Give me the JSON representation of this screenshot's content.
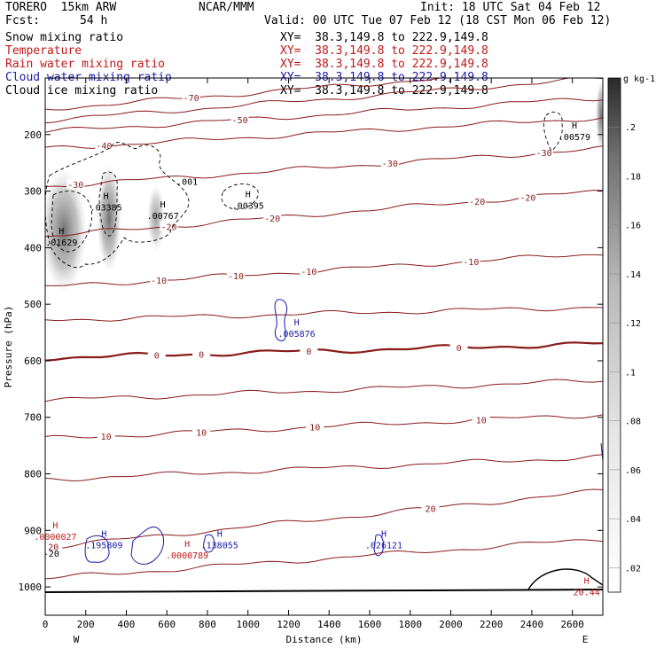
{
  "header": {
    "model": "TORERO  15km ARW",
    "org": "NCAR/MMM",
    "init": "Init: 18 UTC Sat 04 Feb 12",
    "fcst_label": "Fcst:",
    "fcst_value": "54 h",
    "valid": "Valid: 00 UTC Tue 07 Feb 12 (18 CST Mon 06 Feb 12)"
  },
  "fields": [
    {
      "name": "Snow mixing ratio",
      "xy": "XY=  38.3,149.8 to 222.9,149.8",
      "color": "#000000"
    },
    {
      "name": "Temperature",
      "xy": "XY=  38.3,149.8 to 222.9,149.8",
      "color": "#c01818"
    },
    {
      "name": "Rain water mixing ratio",
      "xy": "XY=  38.3,149.8 to 222.9,149.8",
      "color": "#c01818"
    },
    {
      "name": "Cloud water mixing ratio",
      "xy": "XY=  38.3,149.8 to 222.9,149.8",
      "color": "#1a1aa8"
    },
    {
      "name": "Cloud ice mixing ratio",
      "xy": "XY=  38.3,149.8 to 222.9,149.8",
      "color": "#000000"
    }
  ],
  "colors": {
    "temperature": "#8a1a1a",
    "rain": "#c01818",
    "cloud_water": "#1a1aa8",
    "ground": "#000000"
  },
  "chart_data": {
    "type": "cross-section",
    "xlabel": "Distance (km)",
    "ylabel": "Pressure (hPa)",
    "xlim": [
      0,
      2750
    ],
    "ylim": [
      1050,
      100
    ],
    "x_ticks": [
      0,
      200,
      400,
      600,
      800,
      1000,
      1200,
      1400,
      1600,
      1800,
      2000,
      2200,
      2400,
      2600
    ],
    "y_ticks": [
      200,
      300,
      400,
      500,
      600,
      700,
      800,
      900,
      1000
    ],
    "left_end_label": "W",
    "right_end_label": "E",
    "colorbar": {
      "unit": "g kg-1",
      "ticks": [
        ".02",
        ".04",
        ".06",
        ".08",
        ".1",
        ".12",
        ".14",
        ".16",
        ".18",
        ".2"
      ],
      "min": 0.01,
      "max": 0.22
    },
    "temperature_contours": [
      {
        "value": -70,
        "p_left": 155,
        "p_right": 78,
        "labels": [
          {
            "x": 720,
            "text": "-70"
          }
        ]
      },
      {
        "value": -60,
        "p_left": 175,
        "p_right": 100,
        "labels": []
      },
      {
        "value": -50,
        "p_left": 195,
        "p_right": 135,
        "labels": [
          {
            "x": 960,
            "text": "-50"
          }
        ]
      },
      {
        "value": -40,
        "p_left": 225,
        "p_right": 170,
        "labels": [
          {
            "x": 290,
            "text": "-40"
          }
        ]
      },
      {
        "value": -30,
        "p_left": 292,
        "p_right": 225,
        "labels": [
          {
            "x": 150,
            "text": "-30"
          },
          {
            "x": 1700,
            "text": "-30"
          },
          {
            "x": 2460,
            "text": "-30"
          }
        ]
      },
      {
        "value": -20,
        "p_left": 380,
        "p_right": 300,
        "labels": [
          {
            "x": 610,
            "text": "-20"
          },
          {
            "x": 1120,
            "text": "-20"
          },
          {
            "x": 2130,
            "text": "-20"
          },
          {
            "x": 2380,
            "text": "-20"
          }
        ]
      },
      {
        "value": -10,
        "p_left": 470,
        "p_right": 410,
        "labels": [
          {
            "x": 560,
            "text": "-10"
          },
          {
            "x": 940,
            "text": "-10"
          },
          {
            "x": 1300,
            "text": "-10"
          },
          {
            "x": 2100,
            "text": "-10"
          }
        ]
      },
      {
        "value": -5,
        "p_left": 528,
        "p_right": 505,
        "labels": []
      },
      {
        "value": 0,
        "p_left": 595,
        "p_right": 570,
        "labels": [
          {
            "x": 550,
            "text": "0"
          },
          {
            "x": 770,
            "text": "0"
          },
          {
            "x": 1300,
            "text": "0"
          },
          {
            "x": 2040,
            "text": "0"
          }
        ]
      },
      {
        "value": 5,
        "p_left": 670,
        "p_right": 635,
        "labels": []
      },
      {
        "value": 10,
        "p_left": 738,
        "p_right": 695,
        "labels": [
          {
            "x": 300,
            "text": "10"
          },
          {
            "x": 770,
            "text": "10"
          },
          {
            "x": 1330,
            "text": "10"
          },
          {
            "x": 2150,
            "text": "10"
          }
        ]
      },
      {
        "value": 15,
        "p_left": 810,
        "p_right": 770,
        "labels": []
      },
      {
        "value": 20,
        "p_left": 930,
        "p_right": 830,
        "labels": [
          {
            "x": 40,
            "text": "20"
          },
          {
            "x": 1900,
            "text": "20"
          }
        ]
      },
      {
        "value": 25,
        "p_left": 985,
        "p_right": 915,
        "labels": []
      }
    ],
    "maxima": [
      {
        "x": 80,
        "p": 387,
        "value": ".01629",
        "kind": "snow"
      },
      {
        "x": 300,
        "p": 325,
        "value": ".03385",
        "kind": "snow"
      },
      {
        "x": 580,
        "p": 340,
        "value": ".00767",
        "kind": "ice"
      },
      {
        "x": 1000,
        "p": 322,
        "value": ".00395",
        "kind": "ice"
      },
      {
        "x": 2610,
        "p": 200,
        "value": ".00579",
        "kind": "ice"
      },
      {
        "x": 1240,
        "p": 548,
        "value": ".005876",
        "kind": "cloud_water"
      },
      {
        "x": 290,
        "p": 922,
        "value": ".195809",
        "kind": "cloud_water"
      },
      {
        "x": 860,
        "p": 922,
        "value": ".138055",
        "kind": "cloud_water"
      },
      {
        "x": 1670,
        "p": 922,
        "value": ".026121",
        "kind": "cloud_water"
      },
      {
        "x": 50,
        "p": 907,
        "value": ".0000027",
        "kind": "rain"
      },
      {
        "x": 700,
        "p": 940,
        "value": ".0000789",
        "kind": "rain"
      },
      {
        "x": 2670,
        "p": 1005,
        "value": "20.44",
        "kind": "temperature"
      }
    ],
    "other_labels": [
      {
        "x": 700,
        "p": 283,
        "text": ".001"
      },
      {
        "x": 30,
        "p": 940,
        "text": "-20"
      }
    ]
  }
}
